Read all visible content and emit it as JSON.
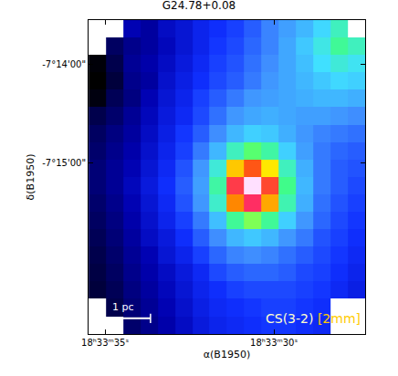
{
  "chart_data": {
    "type": "heatmap",
    "title": "G24.78+0.08",
    "x_label": "α(B1950)",
    "y_label": "δ(B1950)",
    "xlim": [
      66815.49,
      66807.3
    ],
    "ylim": [
      -26204,
      -26013
    ],
    "xticks": [
      {
        "value": 66815,
        "label": "18ʰ33ᵐ35ˢ"
      },
      {
        "value": 66810,
        "label": "18ʰ33ᵐ30ˢ"
      }
    ],
    "yticks": [
      {
        "value": -26040,
        "label": "-7°14'00\""
      },
      {
        "value": -26100,
        "label": "-7°15'00\""
      }
    ],
    "x": [
      66815.23,
      66814.72,
      66814.21,
      66813.7,
      66813.18,
      66812.67,
      66812.16,
      66811.65,
      66811.14,
      66810.63,
      66810.11,
      66809.6,
      66809.09,
      66808.58,
      66808.07,
      66807.56
    ],
    "y": [
      -26018.3,
      -26028.9,
      -26039.5,
      -26050.1,
      -26060.7,
      -26071.3,
      -26081.9,
      -26092.5,
      -26103.1,
      -26113.7,
      -26124.3,
      -26134.9,
      -26145.5,
      -26156.1,
      -26166.7,
      -26177.3,
      -26187.9,
      -26198.5
    ],
    "z": [
      [
        null,
        null,
        2.2,
        2.0,
        2.4,
        2.6,
        2.9,
        3.1,
        3.3,
        3.6,
        4.0,
        4.3,
        4.6,
        5.0,
        5.6,
        null
      ],
      [
        null,
        1.4,
        1.8,
        2.0,
        2.3,
        2.6,
        2.9,
        3.2,
        3.4,
        3.7,
        4.0,
        4.4,
        4.8,
        5.3,
        5.9,
        5.6
      ],
      [
        0.3,
        1.2,
        1.9,
        2.1,
        2.4,
        2.7,
        3.0,
        3.3,
        3.5,
        3.8,
        4.1,
        4.4,
        4.7,
        5.1,
        5.4,
        5.2
      ],
      [
        0.2,
        1.0,
        1.8,
        2.0,
        2.5,
        2.8,
        3.1,
        3.4,
        3.6,
        3.9,
        4.2,
        4.4,
        4.6,
        4.8,
        5.0,
        4.9
      ],
      [
        0.4,
        1.3,
        1.7,
        2.2,
        2.6,
        2.9,
        3.3,
        3.6,
        3.9,
        4.2,
        4.3,
        4.4,
        4.5,
        4.6,
        4.6,
        4.5
      ],
      [
        1.2,
        1.5,
        1.9,
        2.3,
        2.7,
        3.0,
        3.4,
        3.8,
        4.2,
        4.4,
        4.5,
        4.4,
        4.3,
        4.3,
        4.2,
        4.1
      ],
      [
        1.4,
        1.7,
        2.0,
        2.4,
        2.8,
        3.2,
        3.6,
        4.1,
        4.6,
        4.9,
        4.8,
        4.5,
        4.2,
        4.0,
        3.9,
        3.8
      ],
      [
        1.5,
        1.8,
        2.1,
        2.5,
        2.9,
        3.3,
        3.9,
        4.6,
        5.6,
        6.2,
        5.8,
        4.9,
        4.3,
        3.9,
        3.7,
        3.6
      ],
      [
        1.6,
        1.9,
        2.2,
        2.6,
        3.0,
        3.5,
        4.2,
        5.4,
        7.4,
        8.2,
        7.2,
        5.6,
        4.5,
        3.9,
        3.6,
        3.5
      ],
      [
        1.6,
        1.9,
        2.3,
        2.7,
        3.1,
        3.6,
        4.3,
        5.8,
        8.6,
        10.0,
        8.4,
        6.0,
        4.6,
        3.9,
        3.6,
        3.4
      ],
      [
        1.5,
        1.8,
        2.2,
        2.6,
        3.0,
        3.5,
        4.2,
        5.5,
        7.8,
        8.8,
        7.6,
        5.7,
        4.5,
        3.8,
        3.5,
        3.3
      ],
      [
        1.4,
        1.7,
        2.1,
        2.5,
        2.9,
        3.3,
        3.9,
        4.7,
        5.9,
        6.4,
        5.9,
        4.9,
        4.2,
        3.7,
        3.4,
        3.2
      ],
      [
        1.3,
        1.6,
        2.0,
        2.4,
        2.7,
        3.1,
        3.6,
        4.1,
        4.6,
        4.8,
        4.6,
        4.2,
        3.9,
        3.5,
        3.3,
        3.1
      ],
      [
        1.2,
        1.5,
        1.9,
        2.2,
        2.6,
        2.9,
        3.3,
        3.7,
        4.0,
        4.1,
        4.0,
        3.8,
        3.6,
        3.4,
        3.2,
        3.0
      ],
      [
        1.1,
        1.4,
        1.8,
        2.1,
        2.4,
        2.7,
        3.0,
        3.4,
        3.6,
        3.7,
        3.7,
        3.6,
        3.4,
        3.3,
        3.1,
        2.9
      ],
      [
        1.0,
        1.3,
        1.7,
        2.0,
        2.3,
        2.6,
        2.9,
        3.1,
        3.3,
        3.4,
        3.4,
        3.4,
        3.3,
        3.2,
        3.0,
        2.8
      ],
      [
        null,
        1.2,
        1.6,
        1.9,
        2.2,
        2.5,
        2.8,
        3.0,
        3.1,
        3.2,
        3.3,
        3.3,
        3.2,
        3.1,
        null,
        null
      ],
      [
        null,
        null,
        1.5,
        1.8,
        2.1,
        2.4,
        2.7,
        2.9,
        3.0,
        3.1,
        3.2,
        3.2,
        3.1,
        3.0,
        null,
        null
      ]
    ],
    "annotations": [
      {
        "text": "1 pc",
        "color": "#ffffff"
      },
      {
        "text": "CS(3-2)",
        "color": "#ffffcc"
      },
      {
        "text": "[2mm]",
        "color": "#ffcc00"
      }
    ]
  }
}
